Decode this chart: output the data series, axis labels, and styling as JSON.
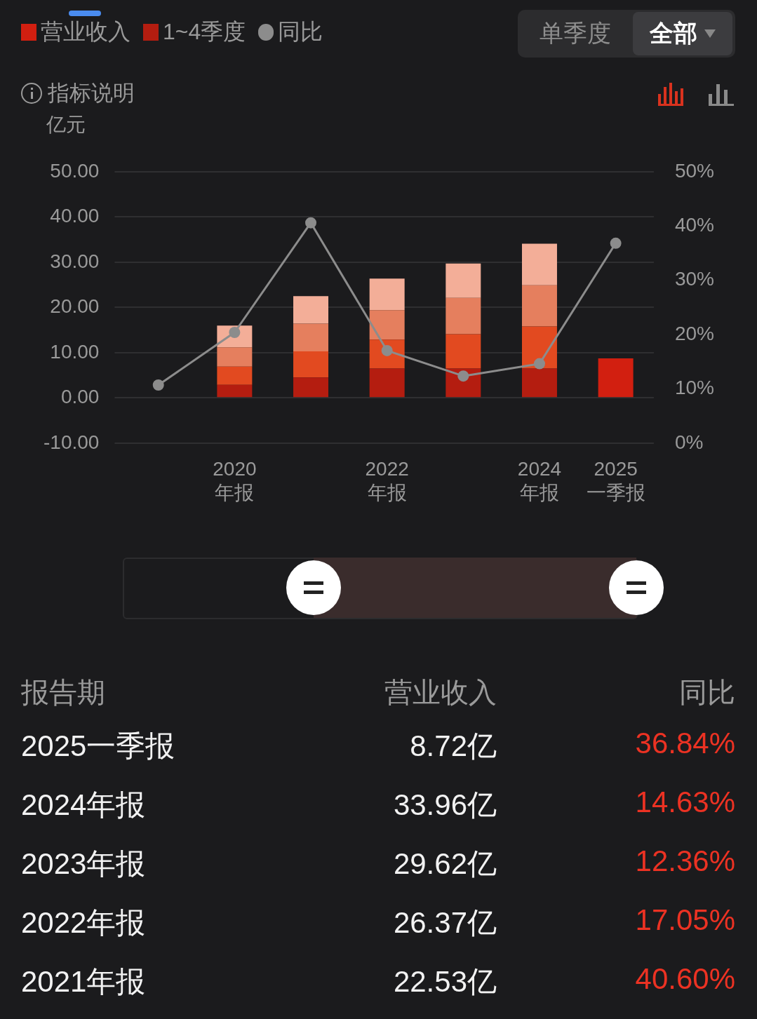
{
  "chart_data": {
    "type": "bar",
    "stacked": true,
    "ylabel": "亿元",
    "categories": [
      null,
      "2020 年报",
      null,
      "2022 年报",
      null,
      "2024 年报",
      "2025 一季报"
    ],
    "series": [
      {
        "name": "营业收入",
        "color": "#d21f10",
        "values": [
          null,
          null,
          null,
          null,
          null,
          null,
          8.72
        ]
      },
      {
        "name": "1~4季度",
        "color": "#b41d10",
        "values": [
          null,
          2.9,
          4.5,
          6.5,
          6.5,
          6.5,
          null
        ]
      },
      {
        "color": "#e24a20",
        "values": [
          null,
          4.0,
          5.8,
          6.4,
          7.6,
          9.3,
          null
        ]
      },
      {
        "color": "#e57f5e",
        "values": [
          null,
          4.3,
          6.1,
          6.5,
          8.0,
          9.1,
          null
        ]
      },
      {
        "color": "#f3ae98",
        "values": [
          null,
          4.8,
          6.1,
          7.0,
          7.6,
          9.2,
          null
        ]
      },
      {
        "name": "同比",
        "type": "line",
        "axis": "y2",
        "color": "#8c8c8c",
        "marker": "circle",
        "values": [
          10.7,
          20.4,
          40.6,
          17.05,
          12.36,
          14.63,
          36.84
        ]
      }
    ],
    "ylim": [
      -10,
      50
    ],
    "yticks": [
      {
        "value": -10,
        "label": "-10.00"
      },
      {
        "value": 0,
        "label": "0.00"
      },
      {
        "value": 10,
        "label": "10.00"
      },
      {
        "value": 20,
        "label": "20.00"
      },
      {
        "value": 30,
        "label": "30.00"
      },
      {
        "value": 40,
        "label": "40.00"
      },
      {
        "value": 50,
        "label": "50.00"
      }
    ],
    "y2lim": [
      0,
      50
    ],
    "y2ticks": [
      {
        "value": 0,
        "label": "0%"
      },
      {
        "value": 10,
        "label": "10%"
      },
      {
        "value": 20,
        "label": "20%"
      },
      {
        "value": 30,
        "label": "30%"
      },
      {
        "value": 40,
        "label": "40%"
      },
      {
        "value": 50,
        "label": "50%"
      }
    ],
    "grid": "y",
    "legend": "top left",
    "annotations": [
      "单季度",
      "全部",
      "指标说明",
      "报告期",
      "营业收入",
      "同比",
      "2025一季报",
      "8.72亿",
      "36.84%",
      "2024年报",
      "33.96亿",
      "14.63%",
      "2023年报",
      "29.62亿",
      "12.36%",
      "2022年报",
      "26.37亿",
      "17.05%",
      "2021年报",
      "22.53亿",
      "40.60%"
    ]
  }
}
